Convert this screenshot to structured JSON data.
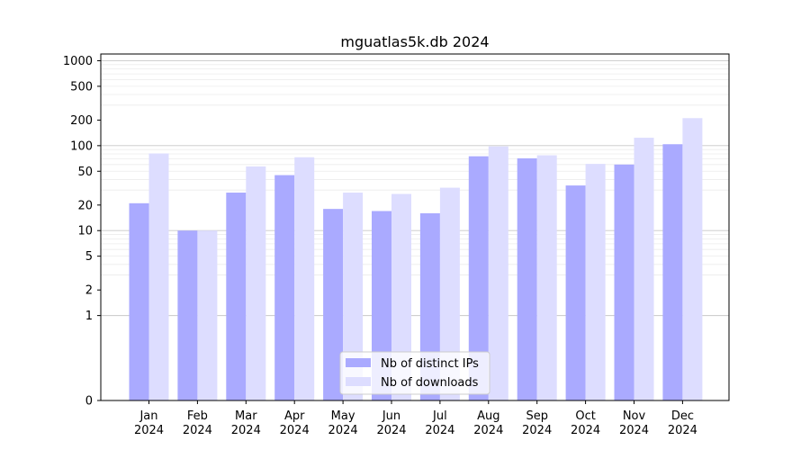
{
  "chart_data": {
    "type": "bar",
    "title": "mguatlas5k.db 2024",
    "yscale": "symlog",
    "ylim": [
      0,
      1200
    ],
    "y_ticks": [
      0,
      1,
      2,
      5,
      10,
      20,
      50,
      100,
      200,
      500,
      1000
    ],
    "categories": [
      {
        "month": "Jan",
        "year": "2024"
      },
      {
        "month": "Feb",
        "year": "2024"
      },
      {
        "month": "Mar",
        "year": "2024"
      },
      {
        "month": "Apr",
        "year": "2024"
      },
      {
        "month": "May",
        "year": "2024"
      },
      {
        "month": "Jun",
        "year": "2024"
      },
      {
        "month": "Jul",
        "year": "2024"
      },
      {
        "month": "Aug",
        "year": "2024"
      },
      {
        "month": "Sep",
        "year": "2024"
      },
      {
        "month": "Oct",
        "year": "2024"
      },
      {
        "month": "Nov",
        "year": "2024"
      },
      {
        "month": "Dec",
        "year": "2024"
      }
    ],
    "series": [
      {
        "name": "Nb of distinct IPs",
        "color": "#aaaaff",
        "values": [
          21,
          10,
          28,
          45,
          18,
          17,
          16,
          75,
          71,
          34,
          60,
          104
        ]
      },
      {
        "name": "Nb of downloads",
        "color": "#ddddff",
        "values": [
          81,
          10,
          57,
          73,
          28,
          27,
          32,
          98,
          77,
          61,
          124,
          211
        ]
      }
    ],
    "legend_position": "lower-center",
    "grid": true
  }
}
